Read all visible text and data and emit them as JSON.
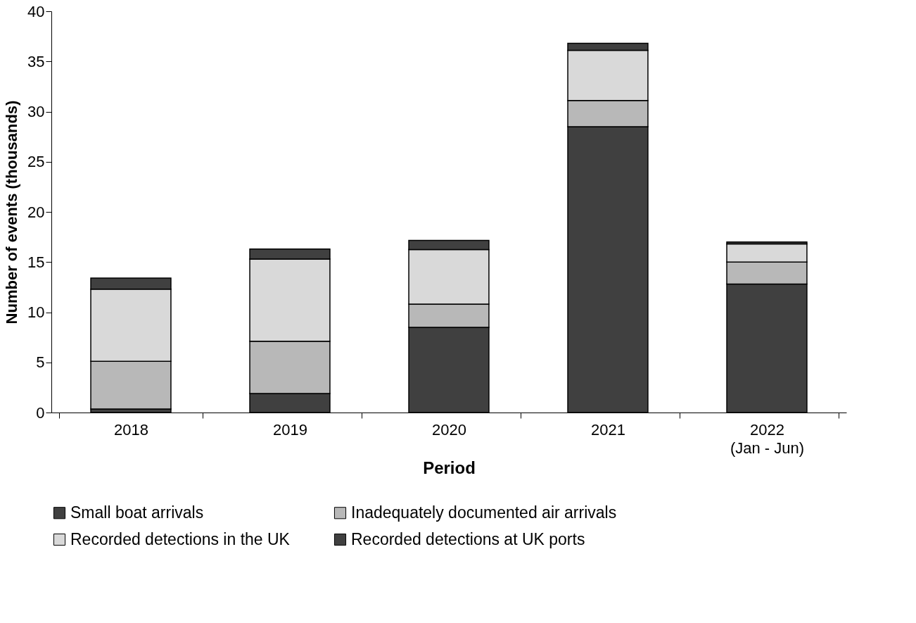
{
  "chart_data": {
    "type": "bar",
    "stacked": true,
    "xlabel": "Period",
    "ylabel": "Number of events (thousands)",
    "categories": [
      "2018",
      "2019",
      "2020",
      "2021",
      "2022\n(Jan - Jun)"
    ],
    "series": [
      {
        "name": "Small boat arrivals",
        "color": "#404040",
        "values": [
          0.35,
          1.9,
          8.5,
          28.5,
          12.8
        ]
      },
      {
        "name": "Inadequately documented air arrivals",
        "color": "#b8b8b8",
        "values": [
          4.75,
          5.2,
          2.3,
          2.6,
          2.2
        ]
      },
      {
        "name": "Recorded detections in the UK",
        "color": "#d9d9d9",
        "values": [
          7.2,
          8.2,
          5.45,
          5.0,
          1.8
        ]
      },
      {
        "name": "Recorded detections at UK ports",
        "color": "#404040",
        "values": [
          1.1,
          1.0,
          0.9,
          0.7,
          0.2
        ]
      }
    ],
    "ylim": [
      0,
      40
    ],
    "yticks": [
      0,
      5,
      10,
      15,
      20,
      25,
      30,
      35,
      40
    ],
    "grid": false,
    "legend": "bottom"
  }
}
